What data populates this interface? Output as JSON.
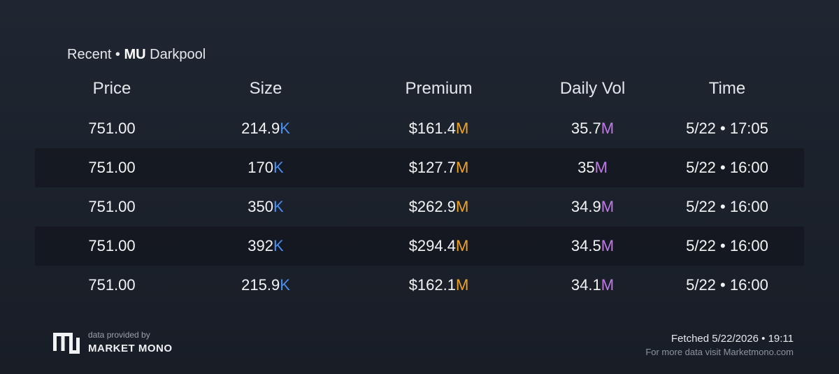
{
  "title": {
    "prefix": "Recent •",
    "ticker": "MU",
    "suffix": "Darkpool"
  },
  "table": {
    "headers": [
      "Price",
      "Size",
      "Premium",
      "Daily Vol",
      "Time"
    ],
    "rows": [
      {
        "price": "751.00",
        "size": "214.9",
        "size_unit": "K",
        "premium": "$161.4",
        "premium_unit": "M",
        "daily_vol": "35.7",
        "daily_vol_unit": "M",
        "time": "5/22 • 17:05"
      },
      {
        "price": "751.00",
        "size": "170",
        "size_unit": "K",
        "premium": "$127.7",
        "premium_unit": "M",
        "daily_vol": "35",
        "daily_vol_unit": "M",
        "time": "5/22 • 16:00"
      },
      {
        "price": "751.00",
        "size": "350",
        "size_unit": "K",
        "premium": "$262.9",
        "premium_unit": "M",
        "daily_vol": "34.9",
        "daily_vol_unit": "M",
        "time": "5/22 • 16:00"
      },
      {
        "price": "751.00",
        "size": "392",
        "size_unit": "K",
        "premium": "$294.4",
        "premium_unit": "M",
        "daily_vol": "34.5",
        "daily_vol_unit": "M",
        "time": "5/22 • 16:00"
      },
      {
        "price": "751.00",
        "size": "215.9",
        "size_unit": "K",
        "premium": "$162.1",
        "premium_unit": "M",
        "daily_vol": "34.1",
        "daily_vol_unit": "M",
        "time": "5/22 • 16:00"
      }
    ]
  },
  "footer": {
    "provided_by": "data provided by",
    "brand_name": "MARKET MONO",
    "fetched": "Fetched 5/22/2026 • 19:11",
    "visit": "For more data visit Marketmono.com"
  },
  "colors": {
    "size_unit": "#4b8ef0",
    "premium_unit": "#f0a323",
    "daily_vol_unit": "#c07ae6",
    "background": "#1c222c"
  },
  "icons": {
    "brand_logo": "market-mono-logo-icon"
  }
}
